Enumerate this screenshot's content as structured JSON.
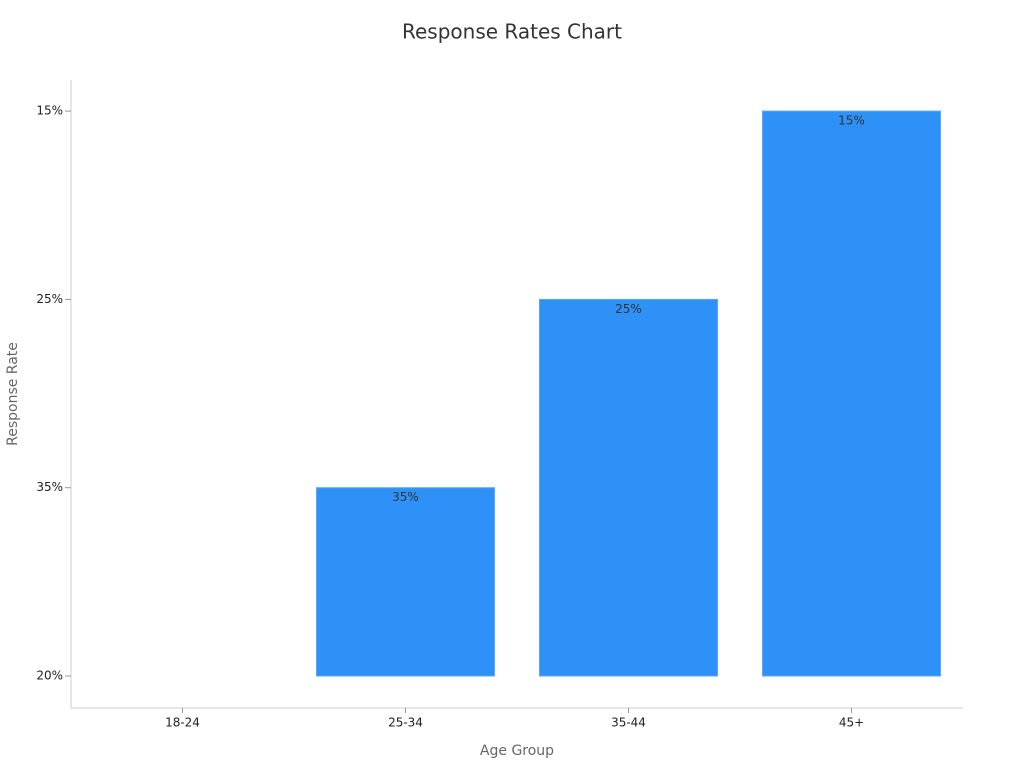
{
  "chart_data": {
    "type": "bar",
    "title": "Response Rates Chart",
    "xlabel": "Age Group",
    "ylabel": "Response Rate",
    "categories": [
      "18-24",
      "25-34",
      "35-44",
      "45+"
    ],
    "values": [
      "20%",
      "35%",
      "25%",
      "15%"
    ],
    "y_categories": [
      "20%",
      "35%",
      "25%",
      "15%"
    ],
    "color": "#2e91f8"
  }
}
